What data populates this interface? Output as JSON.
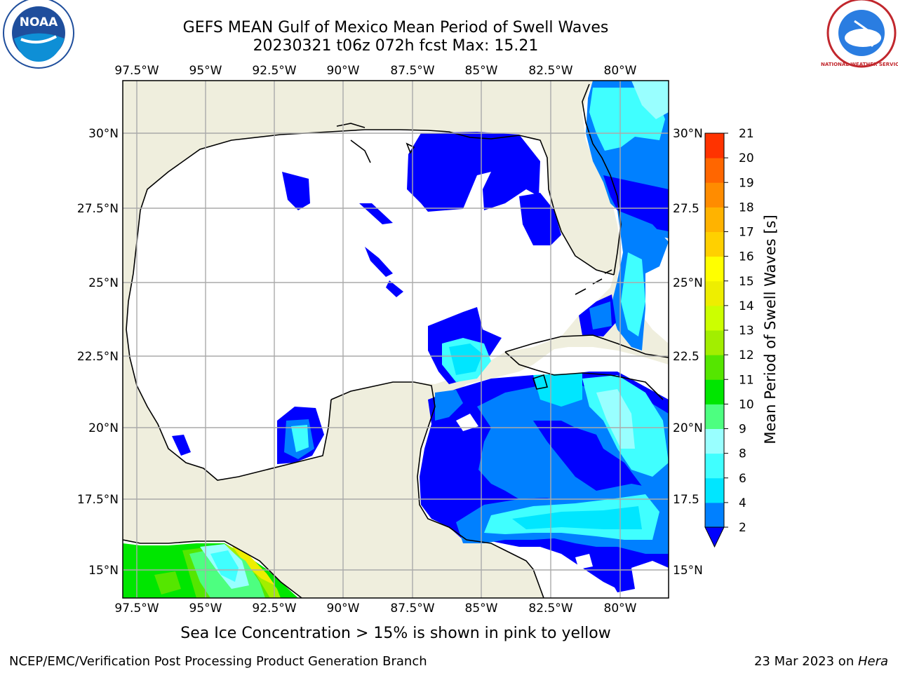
{
  "title_line1": "GEFS MEAN Gulf of Mexico Mean Period of Swell Waves",
  "title_line2": "20230321 t06z 072h fcst   Max: 15.21",
  "lon_labels": [
    "97.5°W",
    "95°W",
    "92.5°W",
    "90°W",
    "87.5°W",
    "85°W",
    "82.5°W",
    "80°W"
  ],
  "lat_labels_left": [
    "30°N",
    "27.5°N",
    "25°N",
    "22.5°N",
    "20°N",
    "17.5°N",
    "15°N"
  ],
  "lat_labels_right": [
    "30°N",
    "27.5",
    "25°N",
    "22.5",
    "20°N",
    "17.5",
    "15°N"
  ],
  "colorbar": {
    "label": "Mean Period of Swell Waves [s]",
    "ticks": [
      "2",
      "4",
      "6",
      "8",
      "9",
      "10",
      "11",
      "12",
      "13",
      "14",
      "15",
      "16",
      "17",
      "18",
      "19",
      "20",
      "21"
    ],
    "colors": [
      "#0080ff",
      "#00e6ff",
      "#40ffff",
      "#99ffff",
      "#4dff80",
      "#00e600",
      "#55e600",
      "#a2ee00",
      "#ccff00",
      "#eeee00",
      "#ffff00",
      "#ffd000",
      "#ffb300",
      "#ff8c00",
      "#ff6600",
      "#ff3300"
    ],
    "under_color": "#0000ff"
  },
  "logos": {
    "left": "NOAA",
    "right": "NATIONAL WEATHER SERVICE"
  },
  "footer_note": "Sea Ice Concentration > 15% is shown in pink to yellow",
  "credit": "NCEP/EMC/Verification Post Processing Product Generation Branch",
  "date_text": "23 Mar 2023 on ",
  "machine": "Hera"
}
